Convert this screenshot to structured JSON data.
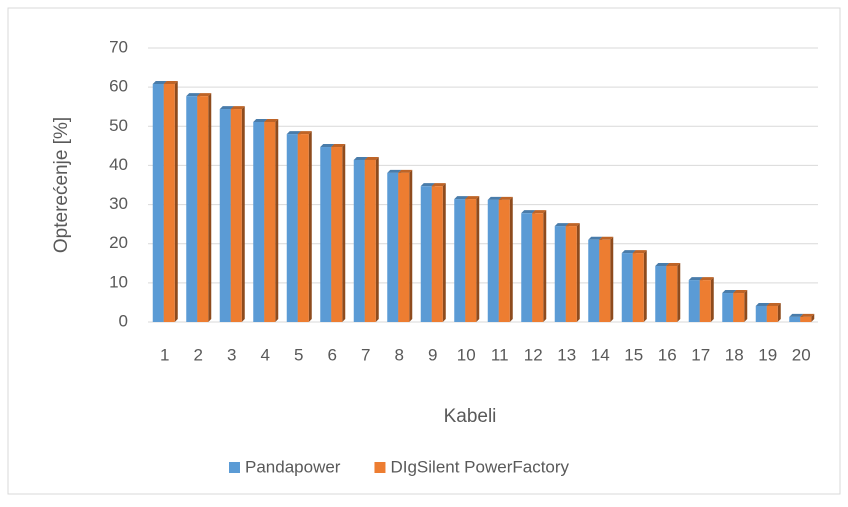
{
  "chart_data": {
    "type": "bar",
    "ylabel": "Opterećenje [%]",
    "xlabel": "Kabeli",
    "categories": [
      "1",
      "2",
      "3",
      "4",
      "5",
      "6",
      "7",
      "8",
      "9",
      "10",
      "11",
      "12",
      "13",
      "14",
      "15",
      "16",
      "17",
      "18",
      "19",
      "20"
    ],
    "series": [
      {
        "name": "Pandapower",
        "color": "#5b9bd5",
        "values": [
          60.8,
          57.7,
          54.4,
          51.1,
          48.0,
          44.7,
          41.4,
          38.1,
          34.7,
          31.4,
          31.2,
          27.8,
          24.5,
          21.0,
          17.6,
          14.3,
          10.7,
          7.4,
          4.1,
          1.3
        ]
      },
      {
        "name": "DIgSilent PowerFactory",
        "color": "#ed7d31",
        "values": [
          60.8,
          57.7,
          54.4,
          51.1,
          48.0,
          44.7,
          41.4,
          38.1,
          34.7,
          31.4,
          31.2,
          27.8,
          24.5,
          21.0,
          17.6,
          14.3,
          10.7,
          7.4,
          4.1,
          1.3
        ]
      }
    ],
    "ylim": [
      0,
      70
    ],
    "yticks": [
      0,
      10,
      20,
      30,
      40,
      50,
      60,
      70
    ],
    "grid": true,
    "legend": "bottom"
  }
}
